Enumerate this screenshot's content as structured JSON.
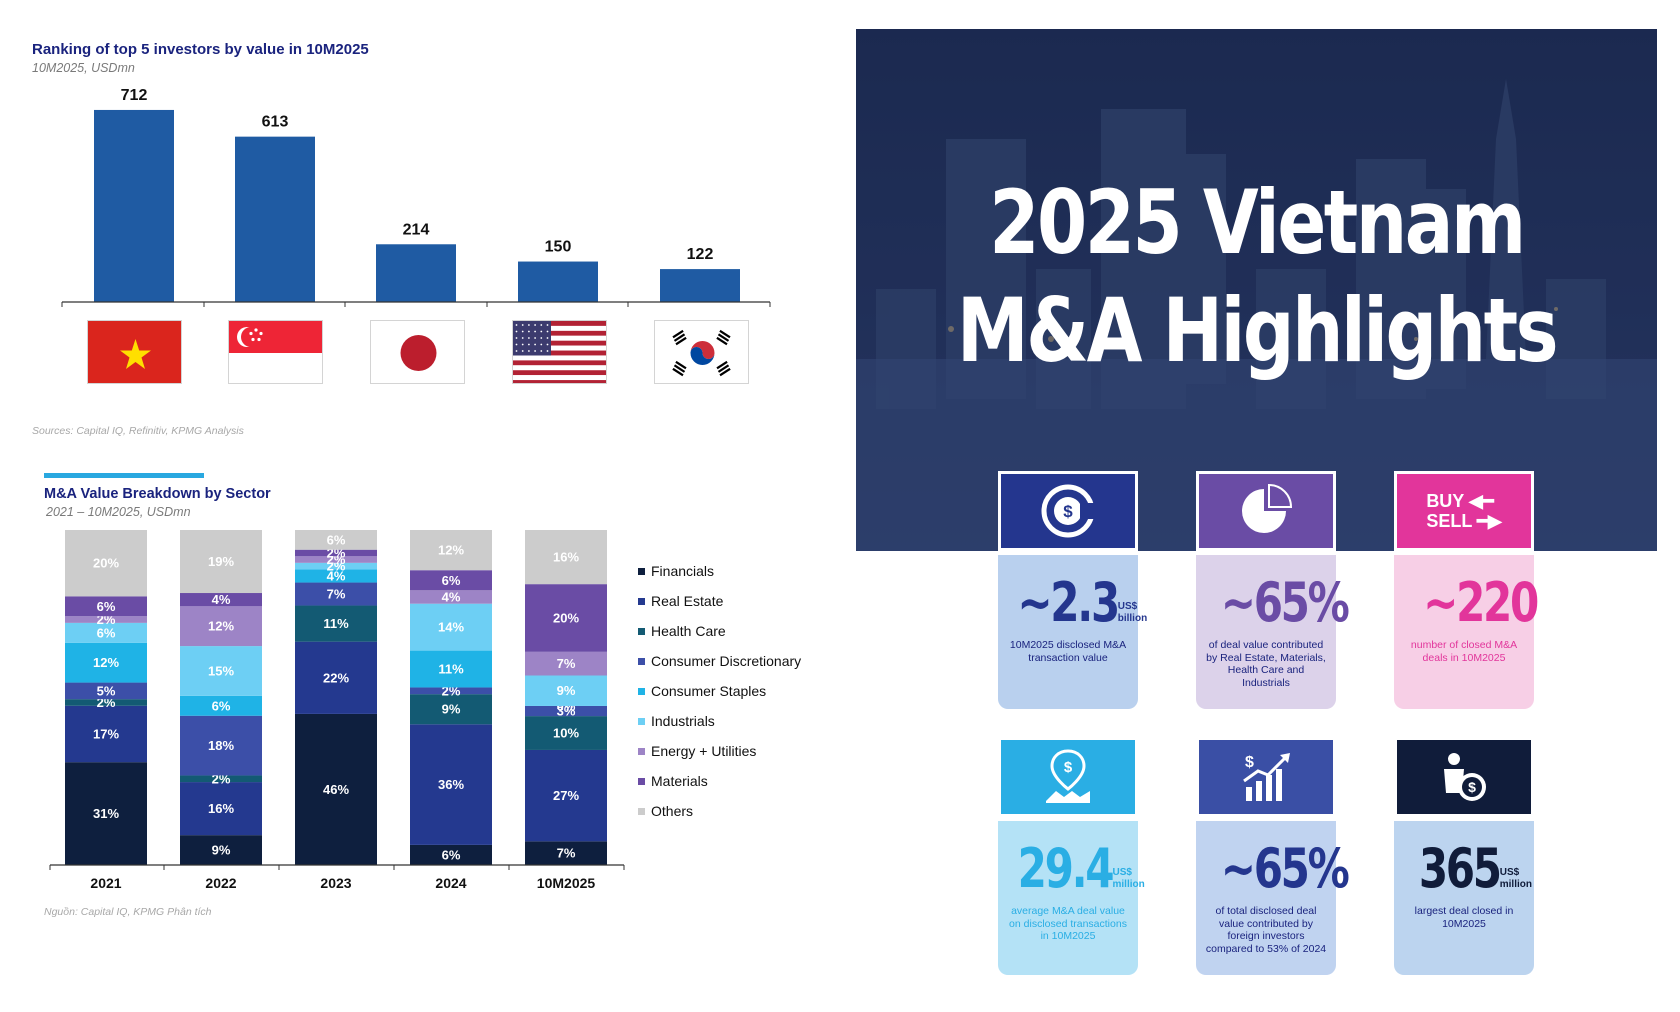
{
  "chart_data": [
    {
      "type": "bar",
      "title": "Ranking of top 5 investors by value in 10M2025",
      "subtitle": "10M2025, USDmn",
      "categories": [
        "Vietnam",
        "Singapore",
        "Japan",
        "United States",
        "South Korea"
      ],
      "values": [
        712,
        613,
        214,
        150,
        122
      ],
      "color": "#1f5ba3",
      "source": "Sources: Capital IQ, Refinitiv, KPMG Analysis"
    },
    {
      "type": "bar",
      "stacked": true,
      "title": "M&A Value Breakdown by Sector",
      "subtitle": "2021 – 10M2025, USDmn",
      "categories": [
        "2021",
        "2022",
        "2023",
        "2024",
        "10M2025"
      ],
      "series": [
        {
          "name": "Financials",
          "color": "#0e1f3e",
          "values": [
            31,
            9,
            46,
            6,
            7
          ]
        },
        {
          "name": "Real Estate",
          "color": "#24398f",
          "values": [
            17,
            16,
            22,
            36,
            27
          ]
        },
        {
          "name": "Health Care",
          "color": "#135a73",
          "values": [
            2,
            2,
            11,
            9,
            10
          ]
        },
        {
          "name": "Consumer Discretionary",
          "color": "#3c4fa8",
          "values": [
            5,
            18,
            7,
            2,
            3
          ]
        },
        {
          "name": "Consumer Staples",
          "color": "#1fb3e6",
          "values": [
            12,
            6,
            4,
            11,
            0
          ]
        },
        {
          "name": "Industrials",
          "color": "#6dcff4",
          "values": [
            6,
            15,
            2,
            14,
            9
          ]
        },
        {
          "name": "Energy + Utilities",
          "color": "#9d84c6",
          "values": [
            2,
            12,
            2,
            4,
            7
          ]
        },
        {
          "name": "Materials",
          "color": "#6a4ca5",
          "values": [
            6,
            4,
            2,
            6,
            20
          ]
        },
        {
          "name": "Others",
          "color": "#cccccc",
          "values": [
            20,
            19,
            6,
            12,
            16
          ]
        }
      ],
      "source": "Nguồn: Capital IQ, KPMG Phân tích"
    }
  ],
  "hero": {
    "title_line1": "2025 Vietnam",
    "title_line2": "M&A Highlights"
  },
  "cards": [
    {
      "icon": "dollar-chart-icon",
      "value": "~2.3",
      "unit1": "US$",
      "unit2": "billion",
      "desc": "10M2025 disclosed M&A transaction value",
      "icon_bg": "#24368e",
      "body_bg": "#b9d0ee",
      "value_color": "#24368e"
    },
    {
      "icon": "pie-chart-icon",
      "value": "~65%",
      "unit1": "",
      "unit2": "",
      "desc": "of deal value contributed by Real Estate, Materials, Health Care and Industrials",
      "icon_bg": "#6a4ca5",
      "body_bg": "#dcd2ea",
      "value_color": "#6a4ca5"
    },
    {
      "icon": "buy-sell-icon",
      "value": "~220",
      "unit1": "",
      "unit2": "",
      "desc": "number of closed M&A deals in 10M2025",
      "icon_bg": "#e2359b",
      "body_bg": "#f7cfe6",
      "value_color": "#e2359b",
      "buy": "BUY",
      "sell": "SELL"
    },
    {
      "icon": "location-dollar-icon",
      "value": "29.4",
      "unit1": "US$",
      "unit2": "million",
      "desc": "average M&A deal value on disclosed transactions in 10M2025",
      "icon_bg": "#2aaee4",
      "body_bg": "#b4e2f6",
      "value_color": "#2aaee4"
    },
    {
      "icon": "growth-chart-icon",
      "value": "~65%",
      "unit1": "",
      "unit2": "",
      "desc": "of total disclosed deal value contributed by foreign investors compared to 53% of 2024",
      "icon_bg": "#3a4fa5",
      "body_bg": "#c0d3f0",
      "value_color": "#24368e"
    },
    {
      "icon": "investor-coin-icon",
      "value": "365",
      "unit1": "US$",
      "unit2": "million",
      "desc": "largest deal closed in 10M2025",
      "icon_bg": "#101c3a",
      "body_bg": "#bcd4ef",
      "value_color": "#101c3a"
    }
  ]
}
